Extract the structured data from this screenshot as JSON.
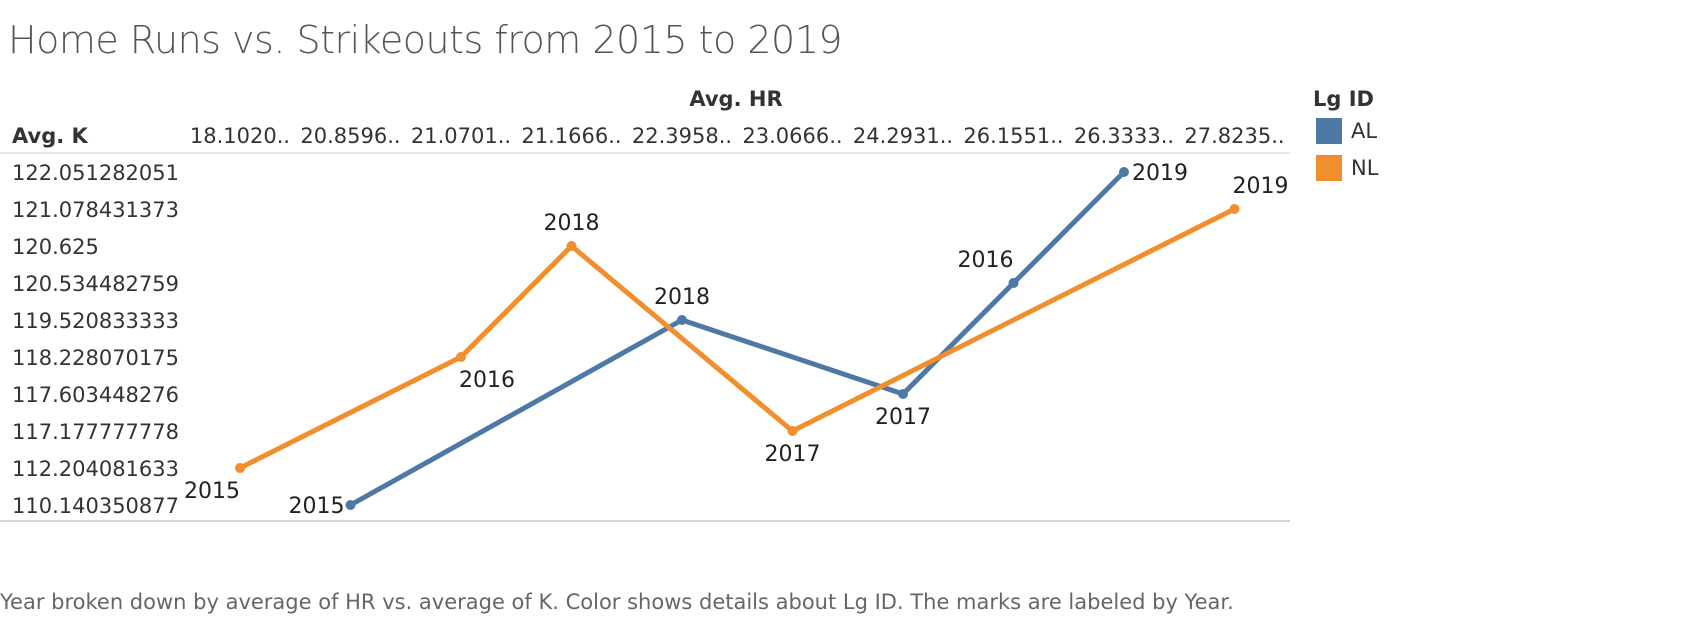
{
  "title": "Home Runs vs. Strikeouts from 2015 to 2019",
  "caption": "Year broken down by average of HR vs. average of K.  Color shows details about Lg ID.  The marks are labeled by Year.",
  "chart_data": {
    "type": "line",
    "title": "Home Runs vs. Strikeouts from 2015 to 2019",
    "xlabel": "Avg. HR",
    "ylabel": "Avg. K",
    "x_ticks": [
      "18.1020..",
      "20.8596..",
      "21.0701..",
      "21.1666..",
      "22.3958..",
      "23.0666..",
      "24.2931..",
      "26.1551..",
      "26.3333..",
      "27.8235.."
    ],
    "y_ticks": [
      "122.051282051",
      "121.078431373",
      "120.625",
      "120.534482759",
      "119.520833333",
      "118.228070175",
      "117.603448276",
      "117.177777778",
      "112.204081633",
      "110.140350877"
    ],
    "legend": {
      "title": "Lg ID",
      "position": "top-right"
    },
    "series": [
      {
        "name": "AL",
        "color": "#4e79a7",
        "points": [
          {
            "x": "20.8596..",
            "y": "110.140350877",
            "label": "2015"
          },
          {
            "x": "22.3958..",
            "y": "119.520833333",
            "label": "2018"
          },
          {
            "x": "24.2931..",
            "y": "117.603448276",
            "label": "2017"
          },
          {
            "x": "26.1551..",
            "y": "120.534482759",
            "label": "2016"
          },
          {
            "x": "26.3333..",
            "y": "122.051282051",
            "label": "2019"
          }
        ]
      },
      {
        "name": "NL",
        "color": "#f28e2b",
        "points": [
          {
            "x": "18.1020..",
            "y": "112.204081633",
            "label": "2015"
          },
          {
            "x": "21.0701..",
            "y": "118.228070175",
            "label": "2016"
          },
          {
            "x": "21.1666..",
            "y": "120.625",
            "label": "2018"
          },
          {
            "x": "23.0666..",
            "y": "117.177777778",
            "label": "2017"
          },
          {
            "x": "27.8235..",
            "y": "121.078431373",
            "label": "2019"
          }
        ]
      }
    ]
  }
}
